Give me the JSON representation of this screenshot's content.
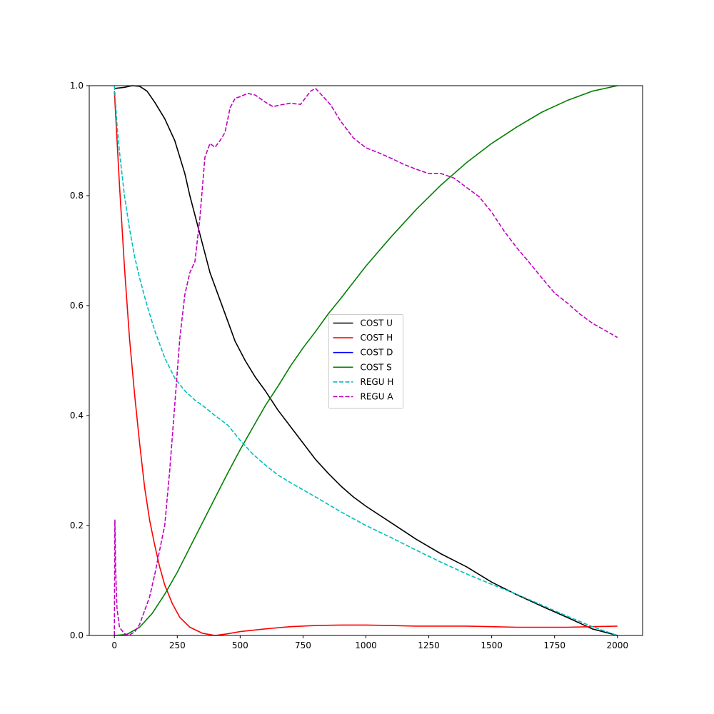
{
  "chart_data": {
    "type": "line",
    "title": "",
    "xlabel": "",
    "ylabel": "",
    "xlim": [
      -100,
      2100
    ],
    "ylim": [
      0,
      1.0
    ],
    "x_ticks": [
      0,
      250,
      500,
      750,
      1000,
      1250,
      1500,
      1750,
      2000
    ],
    "x_tick_labels": [
      "0",
      "250",
      "500",
      "750",
      "1000",
      "1250",
      "1500",
      "1750",
      "2000"
    ],
    "y_ticks": [
      0.0,
      0.2,
      0.4,
      0.6,
      0.8,
      1.0
    ],
    "y_tick_labels": [
      "0.0",
      "0.2",
      "0.4",
      "0.6",
      "0.8",
      "1.0"
    ],
    "grid": false,
    "legend_position": "center",
    "series": [
      {
        "name": "COST U",
        "color": "#000000",
        "style": "solid",
        "points": [
          [
            0,
            0.995
          ],
          [
            40,
            0.997
          ],
          [
            70,
            1.0
          ],
          [
            100,
            0.999
          ],
          [
            130,
            0.99
          ],
          [
            160,
            0.97
          ],
          [
            200,
            0.94
          ],
          [
            240,
            0.9
          ],
          [
            280,
            0.84
          ],
          [
            300,
            0.8
          ],
          [
            340,
            0.73
          ],
          [
            380,
            0.66
          ],
          [
            420,
            0.61
          ],
          [
            460,
            0.56
          ],
          [
            480,
            0.535
          ],
          [
            520,
            0.5
          ],
          [
            560,
            0.47
          ],
          [
            600,
            0.445
          ],
          [
            650,
            0.41
          ],
          [
            700,
            0.38
          ],
          [
            750,
            0.35
          ],
          [
            800,
            0.32
          ],
          [
            850,
            0.295
          ],
          [
            900,
            0.272
          ],
          [
            950,
            0.252
          ],
          [
            1000,
            0.235
          ],
          [
            1100,
            0.205
          ],
          [
            1200,
            0.175
          ],
          [
            1300,
            0.148
          ],
          [
            1400,
            0.125
          ],
          [
            1500,
            0.097
          ],
          [
            1600,
            0.074
          ],
          [
            1700,
            0.053
          ],
          [
            1800,
            0.033
          ],
          [
            1900,
            0.012
          ],
          [
            2000,
            0.0
          ]
        ]
      },
      {
        "name": "COST H",
        "color": "#ff0000",
        "style": "solid",
        "points": [
          [
            0,
            0.99
          ],
          [
            20,
            0.82
          ],
          [
            40,
            0.67
          ],
          [
            60,
            0.54
          ],
          [
            80,
            0.44
          ],
          [
            100,
            0.35
          ],
          [
            120,
            0.27
          ],
          [
            140,
            0.21
          ],
          [
            160,
            0.165
          ],
          [
            180,
            0.125
          ],
          [
            200,
            0.092
          ],
          [
            230,
            0.058
          ],
          [
            260,
            0.033
          ],
          [
            300,
            0.015
          ],
          [
            350,
            0.004
          ],
          [
            400,
            0.0
          ],
          [
            450,
            0.003
          ],
          [
            500,
            0.007
          ],
          [
            600,
            0.012
          ],
          [
            700,
            0.016
          ],
          [
            800,
            0.018
          ],
          [
            900,
            0.019
          ],
          [
            1000,
            0.019
          ],
          [
            1100,
            0.018
          ],
          [
            1200,
            0.017
          ],
          [
            1300,
            0.017
          ],
          [
            1400,
            0.017
          ],
          [
            1500,
            0.016
          ],
          [
            1600,
            0.015
          ],
          [
            1700,
            0.015
          ],
          [
            1800,
            0.015
          ],
          [
            1900,
            0.016
          ],
          [
            2000,
            0.017
          ]
        ]
      },
      {
        "name": "COST D",
        "color": "#0000ff",
        "style": "solid",
        "points": []
      },
      {
        "name": "COST S",
        "color": "#008000",
        "style": "solid",
        "points": [
          [
            0,
            0.0
          ],
          [
            50,
            0.002
          ],
          [
            100,
            0.015
          ],
          [
            150,
            0.04
          ],
          [
            200,
            0.075
          ],
          [
            250,
            0.115
          ],
          [
            300,
            0.16
          ],
          [
            350,
            0.205
          ],
          [
            400,
            0.25
          ],
          [
            450,
            0.295
          ],
          [
            500,
            0.338
          ],
          [
            550,
            0.378
          ],
          [
            600,
            0.418
          ],
          [
            650,
            0.453
          ],
          [
            700,
            0.49
          ],
          [
            750,
            0.523
          ],
          [
            800,
            0.553
          ],
          [
            850,
            0.585
          ],
          [
            900,
            0.613
          ],
          [
            1000,
            0.672
          ],
          [
            1100,
            0.725
          ],
          [
            1200,
            0.775
          ],
          [
            1300,
            0.82
          ],
          [
            1400,
            0.86
          ],
          [
            1500,
            0.895
          ],
          [
            1600,
            0.925
          ],
          [
            1700,
            0.952
          ],
          [
            1800,
            0.973
          ],
          [
            1900,
            0.99
          ],
          [
            2000,
            1.0
          ]
        ]
      },
      {
        "name": "REGU H",
        "color": "#00bfbf",
        "style": "dashed",
        "points": [
          [
            0,
            1.0
          ],
          [
            10,
            0.93
          ],
          [
            20,
            0.88
          ],
          [
            40,
            0.8
          ],
          [
            60,
            0.74
          ],
          [
            80,
            0.69
          ],
          [
            100,
            0.65
          ],
          [
            130,
            0.6
          ],
          [
            160,
            0.555
          ],
          [
            200,
            0.505
          ],
          [
            240,
            0.468
          ],
          [
            280,
            0.445
          ],
          [
            320,
            0.428
          ],
          [
            360,
            0.415
          ],
          [
            400,
            0.4
          ],
          [
            450,
            0.383
          ],
          [
            500,
            0.355
          ],
          [
            550,
            0.33
          ],
          [
            600,
            0.31
          ],
          [
            650,
            0.292
          ],
          [
            700,
            0.278
          ],
          [
            750,
            0.265
          ],
          [
            800,
            0.252
          ],
          [
            900,
            0.225
          ],
          [
            1000,
            0.2
          ],
          [
            1100,
            0.178
          ],
          [
            1200,
            0.155
          ],
          [
            1300,
            0.133
          ],
          [
            1400,
            0.112
          ],
          [
            1500,
            0.093
          ],
          [
            1600,
            0.075
          ],
          [
            1700,
            0.055
          ],
          [
            1800,
            0.035
          ],
          [
            1900,
            0.016
          ],
          [
            2000,
            0.0
          ]
        ]
      },
      {
        "name": "REGU A",
        "color": "#bf00bf",
        "style": "dashed",
        "points": [
          [
            0,
            0.0
          ],
          [
            2,
            0.21
          ],
          [
            5,
            0.12
          ],
          [
            10,
            0.05
          ],
          [
            20,
            0.015
          ],
          [
            40,
            0.003
          ],
          [
            60,
            0.001
          ],
          [
            80,
            0.006
          ],
          [
            100,
            0.02
          ],
          [
            120,
            0.045
          ],
          [
            140,
            0.07
          ],
          [
            160,
            0.11
          ],
          [
            180,
            0.155
          ],
          [
            200,
            0.2
          ],
          [
            220,
            0.3
          ],
          [
            240,
            0.42
          ],
          [
            260,
            0.54
          ],
          [
            280,
            0.62
          ],
          [
            300,
            0.66
          ],
          [
            320,
            0.68
          ],
          [
            340,
            0.76
          ],
          [
            360,
            0.87
          ],
          [
            380,
            0.895
          ],
          [
            400,
            0.888
          ],
          [
            420,
            0.9
          ],
          [
            440,
            0.915
          ],
          [
            460,
            0.96
          ],
          [
            480,
            0.977
          ],
          [
            500,
            0.98
          ],
          [
            530,
            0.986
          ],
          [
            560,
            0.983
          ],
          [
            600,
            0.97
          ],
          [
            630,
            0.962
          ],
          [
            660,
            0.965
          ],
          [
            700,
            0.968
          ],
          [
            740,
            0.966
          ],
          [
            780,
            0.99
          ],
          [
            800,
            0.995
          ],
          [
            830,
            0.98
          ],
          [
            860,
            0.965
          ],
          [
            900,
            0.935
          ],
          [
            950,
            0.905
          ],
          [
            1000,
            0.887
          ],
          [
            1050,
            0.878
          ],
          [
            1100,
            0.868
          ],
          [
            1150,
            0.857
          ],
          [
            1200,
            0.848
          ],
          [
            1250,
            0.84
          ],
          [
            1300,
            0.84
          ],
          [
            1350,
            0.832
          ],
          [
            1400,
            0.815
          ],
          [
            1450,
            0.798
          ],
          [
            1500,
            0.77
          ],
          [
            1550,
            0.735
          ],
          [
            1600,
            0.705
          ],
          [
            1650,
            0.678
          ],
          [
            1700,
            0.65
          ],
          [
            1750,
            0.623
          ],
          [
            1800,
            0.605
          ],
          [
            1850,
            0.585
          ],
          [
            1900,
            0.568
          ],
          [
            1950,
            0.555
          ],
          [
            2000,
            0.542
          ]
        ]
      }
    ]
  }
}
